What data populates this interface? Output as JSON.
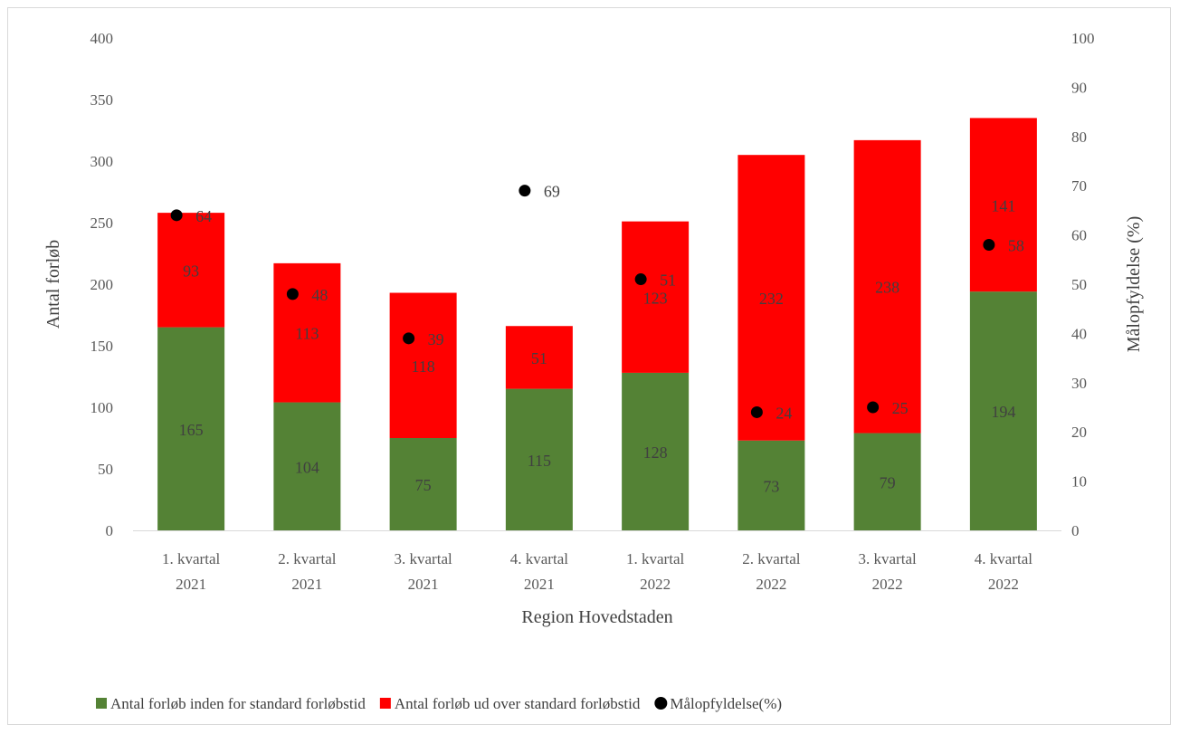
{
  "chart_data": {
    "type": "bar",
    "stacked": true,
    "categories": [
      [
        "1. kvartal",
        "2021"
      ],
      [
        "2. kvartal",
        "2021"
      ],
      [
        "3. kvartal",
        "2021"
      ],
      [
        "4. kvartal",
        "2021"
      ],
      [
        "1. kvartal",
        "2022"
      ],
      [
        "2. kvartal",
        "2022"
      ],
      [
        "3. kvartal",
        "2022"
      ],
      [
        "4. kvartal",
        "2022"
      ]
    ],
    "series": [
      {
        "name": "Antal forløb inden for standard forløbstid",
        "type": "bar",
        "axis": "left",
        "color": "#548235",
        "values": [
          165,
          104,
          75,
          115,
          128,
          73,
          79,
          194
        ]
      },
      {
        "name": "Antal forløb ud over standard forløbstid",
        "type": "bar",
        "axis": "left",
        "color": "#ff0000",
        "values": [
          93,
          113,
          118,
          51,
          123,
          232,
          238,
          141
        ]
      },
      {
        "name": "Målopfyldelse(%)",
        "type": "scatter",
        "axis": "right",
        "color": "#000000",
        "values": [
          64,
          48,
          39,
          69,
          51,
          24,
          25,
          58
        ]
      }
    ],
    "xlabel": "Region Hovedstaden",
    "ylabel": "Antal forløb",
    "y2label": "Målopfyldelse (%)",
    "ylim": [
      0,
      400
    ],
    "y2lim": [
      0,
      100
    ],
    "yticks": [
      0,
      50,
      100,
      150,
      200,
      250,
      300,
      350,
      400
    ],
    "y2ticks": [
      0,
      10,
      20,
      30,
      40,
      50,
      60,
      70,
      80,
      90,
      100
    ],
    "grid": false,
    "legend": "bottom"
  }
}
